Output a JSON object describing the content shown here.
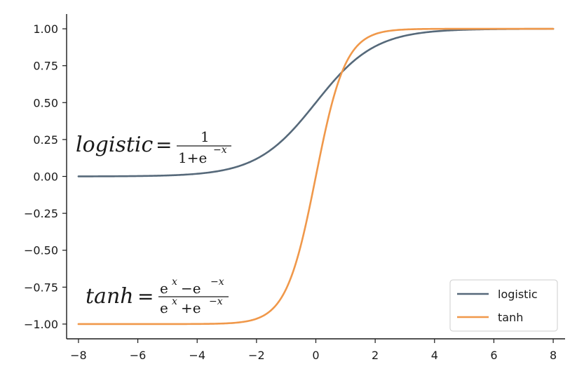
{
  "colors": {
    "logistic": "#56697a",
    "tanh": "#f0984a",
    "axis": "#1a1a1a"
  },
  "chart_data": {
    "type": "line",
    "title": "",
    "xlabel": "",
    "ylabel": "",
    "xlim": [
      -8.4,
      8.4
    ],
    "ylim": [
      -1.1,
      1.1
    ],
    "x_ticks": [
      -8,
      -6,
      -4,
      -2,
      0,
      2,
      4,
      6,
      8
    ],
    "x_tick_labels": [
      "−8",
      "−6",
      "−4",
      "−2",
      "0",
      "2",
      "4",
      "6",
      "8"
    ],
    "y_ticks": [
      1.0,
      0.75,
      0.5,
      0.25,
      0.0,
      -0.25,
      -0.5,
      -0.75,
      -1.0
    ],
    "y_tick_labels": [
      "1.00",
      "0.75",
      "0.50",
      "0.25",
      "0.00",
      "−0.25",
      "−0.50",
      "−0.75",
      "−1.00"
    ],
    "grid": false,
    "legend_position": "bottom-right",
    "x_range": [
      -8,
      8
    ],
    "series": [
      {
        "name": "logistic",
        "function": "1/(1+exp(-x))",
        "color": "#56697a"
      },
      {
        "name": "tanh",
        "function": "tanh(x)",
        "color": "#f0984a"
      }
    ],
    "annotations": {
      "logistic": {
        "lhs": "logistic",
        "eq": "=",
        "num": "1",
        "den_base": "1+e",
        "den_sup": "−x"
      },
      "tanh": {
        "lhs": "tanh",
        "eq": "=",
        "num_a": "e",
        "num_a_sup": "x",
        "num_op": "−e",
        "num_b_sup": "−x",
        "den_a": "e",
        "den_a_sup": "x",
        "den_op": "+e",
        "den_b_sup": "−x"
      }
    }
  }
}
